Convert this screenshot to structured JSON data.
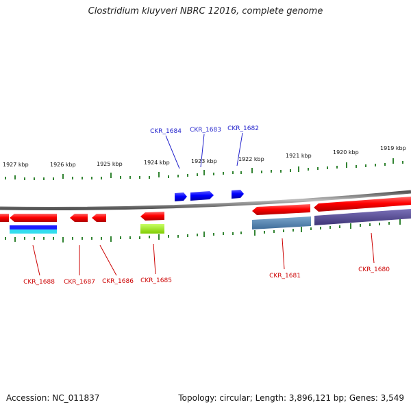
{
  "title": "Clostridium kluyveri NBRC 12016, complete genome",
  "footer": {
    "accession": "Accession: NC_011837",
    "summary": "Topology: circular; Length: 3,896,121 bp; Genes: 3,549"
  },
  "colors": {
    "forward_gene": "#0000ee",
    "reverse_gene": "#ee0000",
    "forward_label": "#2222cc",
    "reverse_label": "#cc0000",
    "backbone": "#808080",
    "ticks": "#006600"
  },
  "scale": {
    "ticks": [
      "1927 kbp",
      "1926 kbp",
      "1925 kbp",
      "1924 kbp",
      "1923 kbp",
      "1922 kbp",
      "1921 kbp",
      "1920 kbp",
      "1919 kbp"
    ]
  },
  "genes": [
    {
      "id": "CKR_1684",
      "strand": "forward"
    },
    {
      "id": "CKR_1683",
      "strand": "forward"
    },
    {
      "id": "CKR_1682",
      "strand": "forward"
    },
    {
      "id": "CKR_1688",
      "strand": "reverse"
    },
    {
      "id": "CKR_1687",
      "strand": "reverse"
    },
    {
      "id": "CKR_1686",
      "strand": "reverse"
    },
    {
      "id": "CKR_1685",
      "strand": "reverse"
    },
    {
      "id": "CKR_1681",
      "strand": "reverse"
    },
    {
      "id": "CKR_1680",
      "strand": "reverse"
    }
  ]
}
